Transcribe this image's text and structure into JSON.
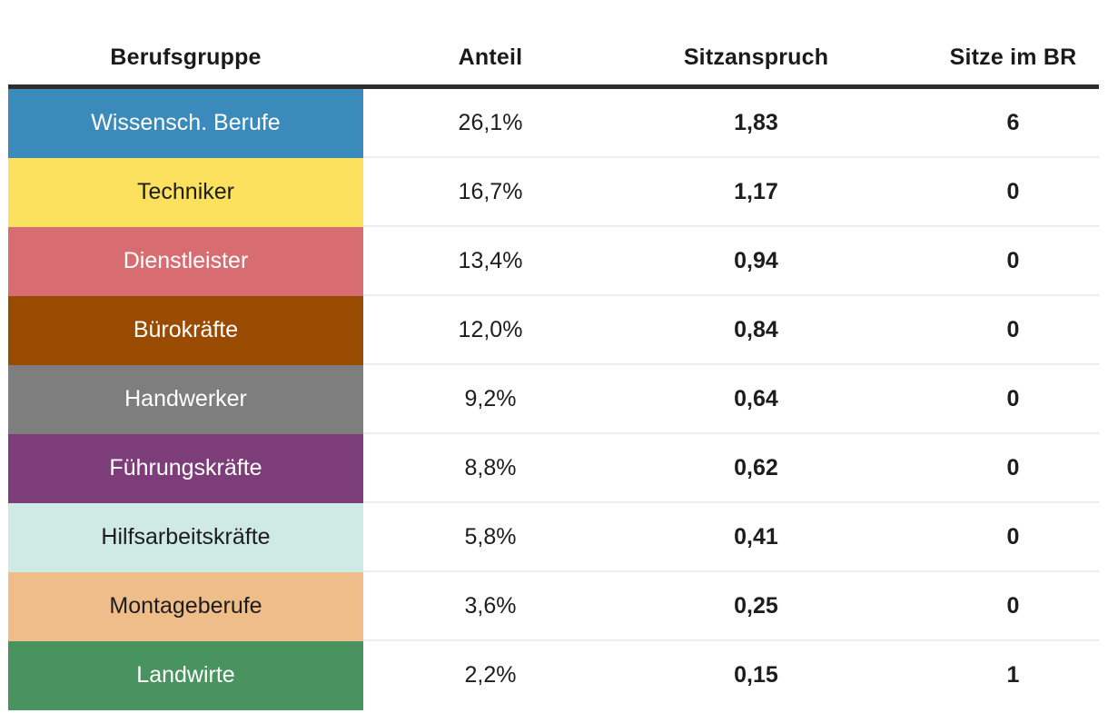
{
  "page": {
    "background": "#ffffff"
  },
  "table": {
    "columns": [
      {
        "label": "Berufsgruppe"
      },
      {
        "label": "Anteil"
      },
      {
        "label": "Sitzanspruch"
      },
      {
        "label": "Sitze im BR"
      }
    ],
    "header_rule_color": "#2d2d2d",
    "separator_color": "#ededed",
    "rows": [
      {
        "group": "Wissensch. Berufe",
        "color": "#3a8abc",
        "color_name": "blue",
        "text_color": "#ffffff",
        "anteil": "26,1%",
        "sitzanspruch": "1,83",
        "sitze_im_br": "6"
      },
      {
        "group": "Techniker",
        "color": "#fbe15e",
        "color_name": "yellow",
        "text_color": "#1d1d1d",
        "anteil": "16,7%",
        "sitzanspruch": "1,17",
        "sitze_im_br": "0"
      },
      {
        "group": "Dienstleister",
        "color": "#d76d71",
        "color_name": "red",
        "text_color": "#ffffff",
        "anteil": "13,4%",
        "sitzanspruch": "0,94",
        "sitze_im_br": "0"
      },
      {
        "group": "Bürokräfte",
        "color": "#9a4b02",
        "color_name": "brown",
        "text_color": "#ffffff",
        "anteil": "12,0%",
        "sitzanspruch": "0,84",
        "sitze_im_br": "0"
      },
      {
        "group": "Handwerker",
        "color": "#7e7e7e",
        "color_name": "gray",
        "text_color": "#ffffff",
        "anteil": "9,2%",
        "sitzanspruch": "0,64",
        "sitze_im_br": "0"
      },
      {
        "group": "Führungskräfte",
        "color": "#7d3d79",
        "color_name": "purple",
        "text_color": "#ffffff",
        "anteil": "8,8%",
        "sitzanspruch": "0,62",
        "sitze_im_br": "0"
      },
      {
        "group": "Hilfsarbeitskräfte",
        "color": "#cfe9e4",
        "color_name": "light-teal",
        "text_color": "#1d1d1d",
        "anteil": "5,8%",
        "sitzanspruch": "0,41",
        "sitze_im_br": "0"
      },
      {
        "group": "Montageberufe",
        "color": "#efbd8a",
        "color_name": "tan",
        "text_color": "#1d1d1d",
        "anteil": "3,6%",
        "sitzanspruch": "0,25",
        "sitze_im_br": "0"
      },
      {
        "group": "Landwirte",
        "color": "#48935f",
        "color_name": "green",
        "text_color": "#ffffff",
        "anteil": "2,2%",
        "sitzanspruch": "0,15",
        "sitze_im_br": "1"
      }
    ]
  },
  "chart_data": {
    "type": "table",
    "columns": [
      "Berufsgruppe",
      "Anteil",
      "Sitzanspruch",
      "Sitze im BR"
    ],
    "rows": [
      [
        "Wissensch. Berufe",
        "26,1%",
        "1,83",
        "6"
      ],
      [
        "Techniker",
        "16,7%",
        "1,17",
        "0"
      ],
      [
        "Dienstleister",
        "13,4%",
        "0,94",
        "0"
      ],
      [
        "Bürokräfte",
        "12,0%",
        "0,84",
        "0"
      ],
      [
        "Handwerker",
        "9,2%",
        "0,64",
        "0"
      ],
      [
        "Führungskräfte",
        "8,8%",
        "0,62",
        "0"
      ],
      [
        "Hilfsarbeitskräfte",
        "5,8%",
        "0,41",
        "0"
      ],
      [
        "Montageberufe",
        "3,6%",
        "0,25",
        "0"
      ],
      [
        "Landwirte",
        "2,2%",
        "0,15",
        "1"
      ]
    ],
    "row_colors": [
      "#3a8abc",
      "#fbe15e",
      "#d76d71",
      "#9a4b02",
      "#7e7e7e",
      "#7d3d79",
      "#cfe9e4",
      "#efbd8a",
      "#48935f"
    ],
    "layout": {
      "anteil_values_weight": "regular",
      "sitzanspruch_values_weight": "bold",
      "sitze_im_br_values_weight": "bold",
      "header_rule": "thick dark line under header",
      "row_separators": "thin light gray lines in white columns only"
    }
  }
}
